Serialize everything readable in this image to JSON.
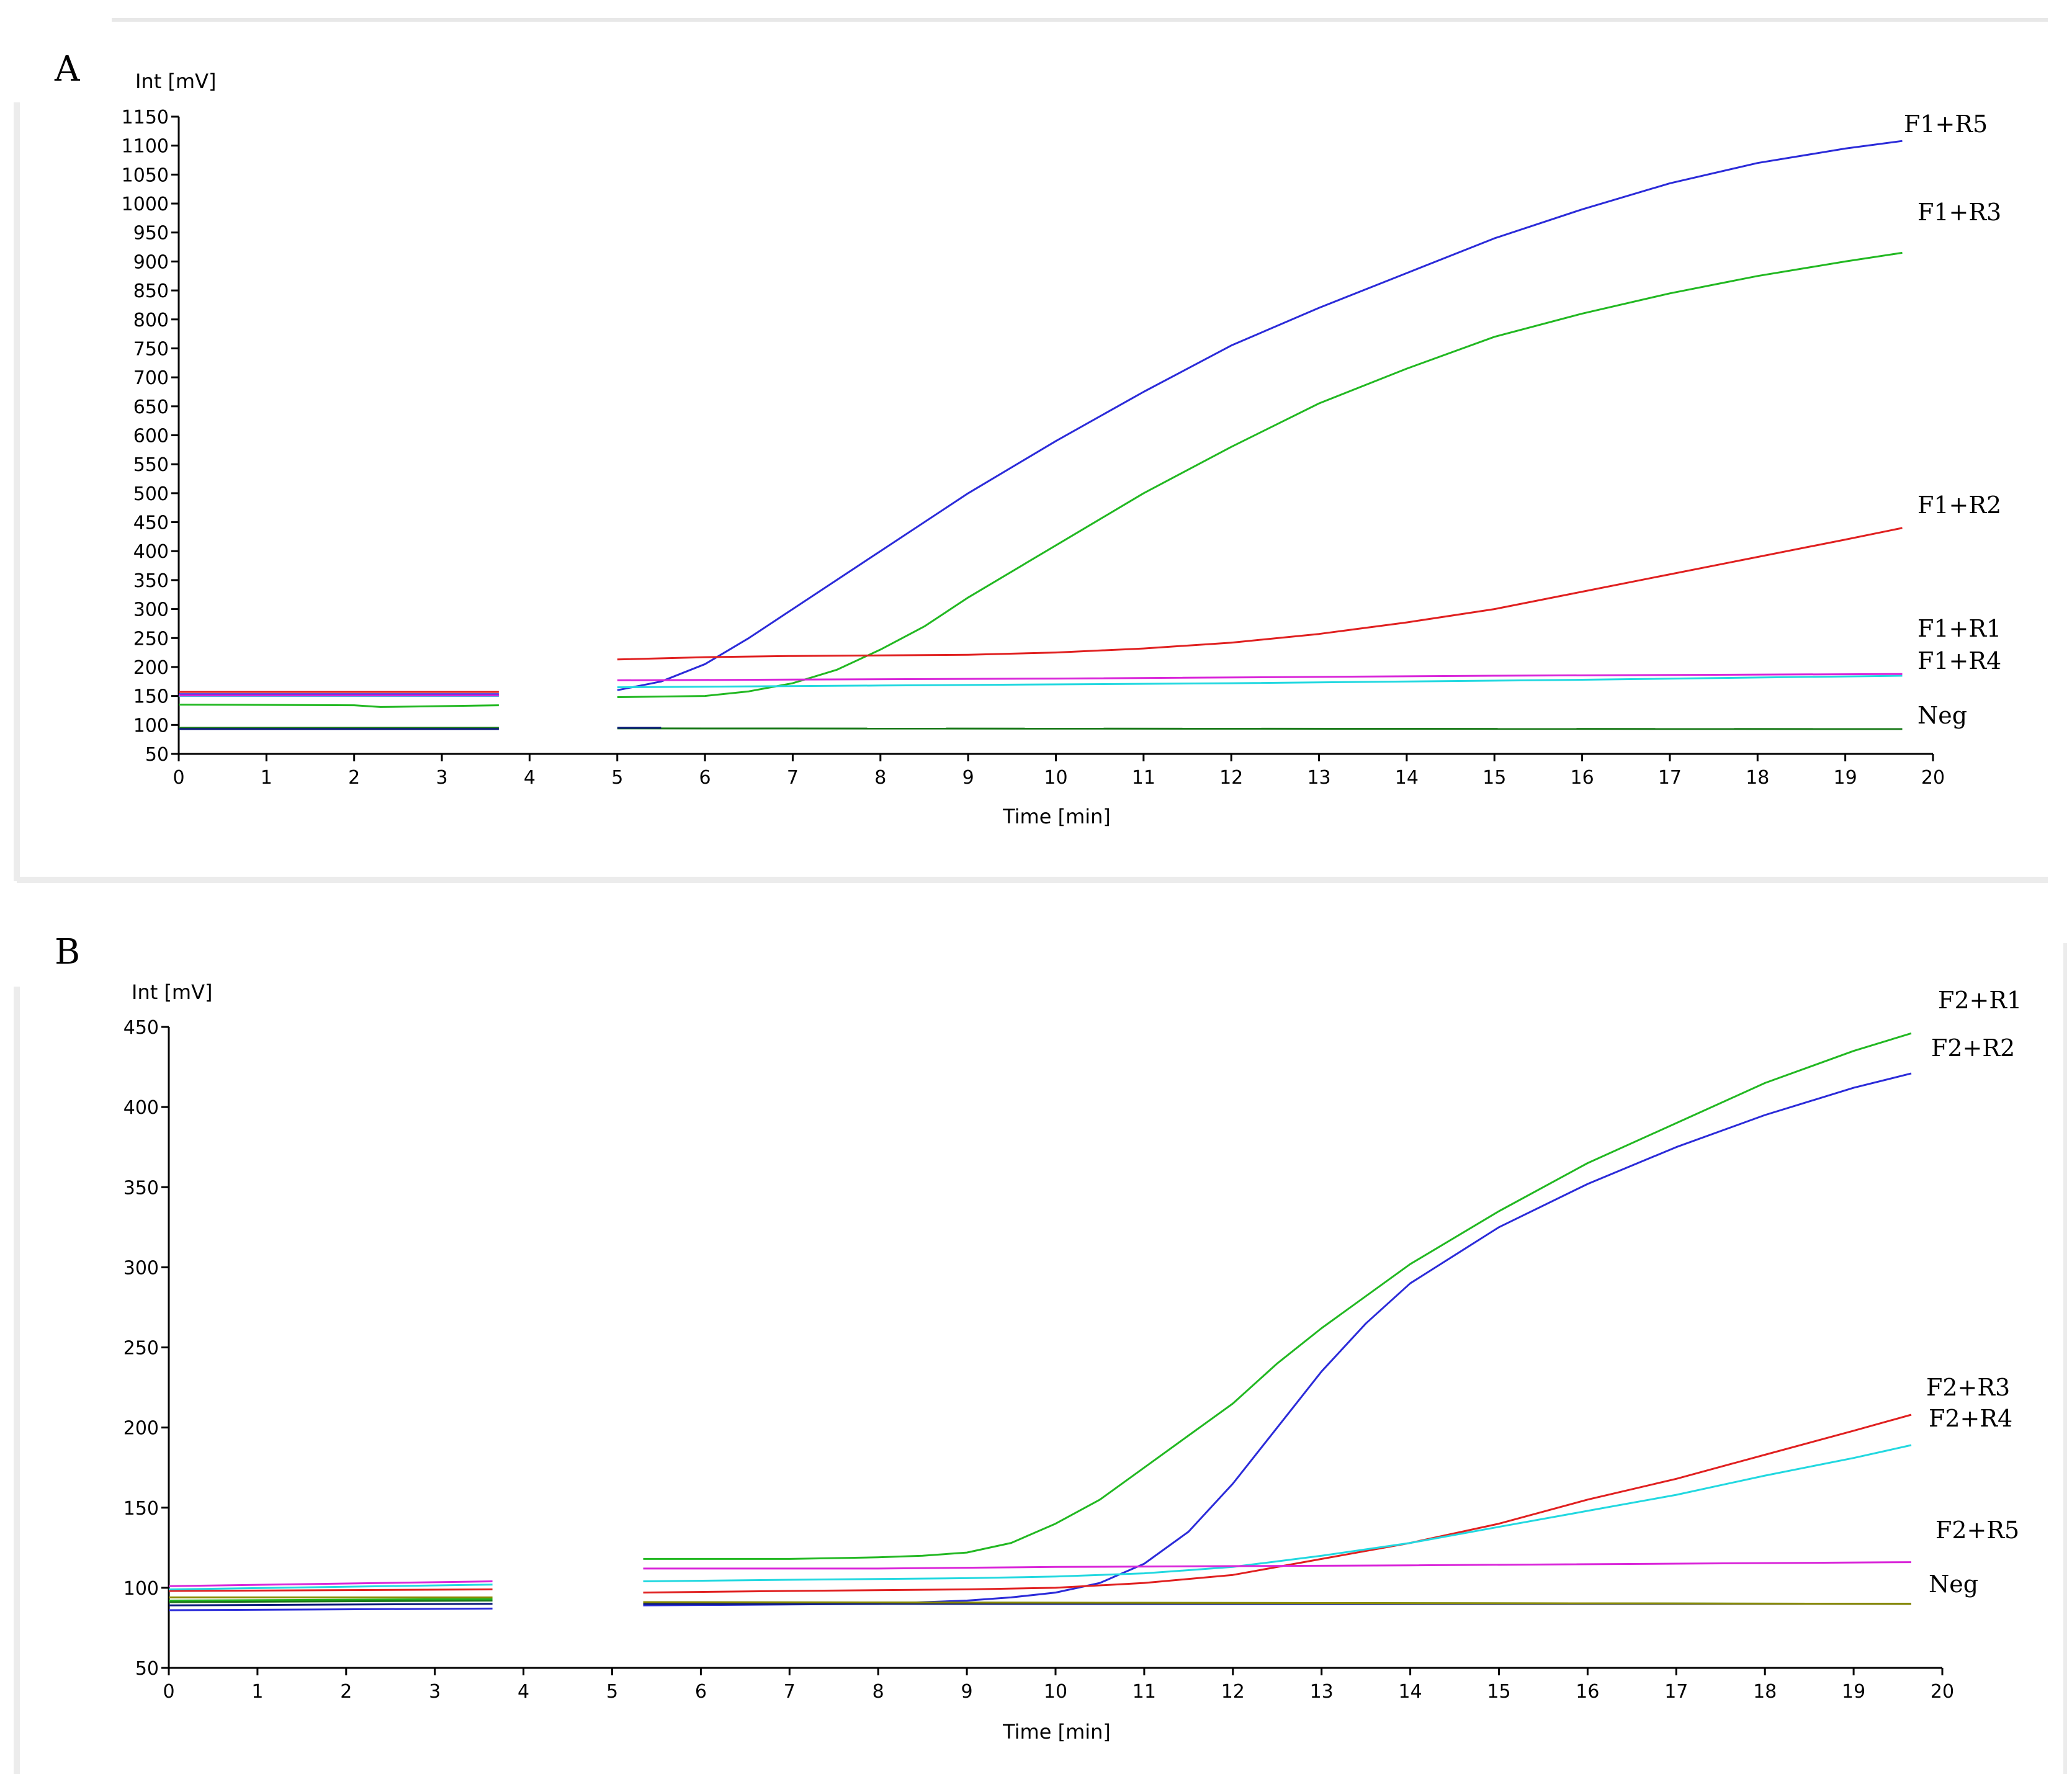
{
  "panels": [
    {
      "label": "A",
      "chart_data": {
        "type": "line",
        "title": "",
        "xlabel": "Time [min]",
        "ylabel": "Int [mV]",
        "xlim": [
          0,
          20
        ],
        "ylim": [
          50,
          1150
        ],
        "xticks": [
          0,
          1,
          2,
          3,
          4,
          5,
          6,
          7,
          8,
          9,
          10,
          11,
          12,
          13,
          14,
          15,
          16,
          17,
          18,
          19,
          20
        ],
        "yticks": [
          50,
          100,
          150,
          200,
          250,
          300,
          350,
          400,
          450,
          500,
          550,
          600,
          650,
          700,
          750,
          800,
          850,
          900,
          950,
          1000,
          1050,
          1100,
          1150
        ],
        "grid": false,
        "series": [
          {
            "name": "F1+R5",
            "color": "#2b2bd9",
            "segments": [
              [
                [
                  0,
                  153
                ],
                [
                  3.65,
                  153
                ]
              ],
              [
                [
                  5,
                  160
                ],
                [
                  5.5,
                  175
                ],
                [
                  6,
                  205
                ],
                [
                  6.5,
                  250
                ],
                [
                  7,
                  300
                ],
                [
                  8,
                  400
                ],
                [
                  9,
                  500
                ],
                [
                  10,
                  590
                ],
                [
                  11,
                  675
                ],
                [
                  12,
                  755
                ],
                [
                  13,
                  820
                ],
                [
                  14,
                  880
                ],
                [
                  15,
                  940
                ],
                [
                  16,
                  990
                ],
                [
                  17,
                  1035
                ],
                [
                  18,
                  1070
                ],
                [
                  19,
                  1095
                ],
                [
                  19.65,
                  1108
                ]
              ]
            ]
          },
          {
            "name": "F1+R3",
            "color": "#22b822",
            "segments": [
              [
                [
                  0,
                  135
                ],
                [
                  2,
                  134
                ],
                [
                  2.3,
                  131
                ],
                [
                  3.65,
                  134
                ]
              ],
              [
                [
                  5,
                  148
                ],
                [
                  6,
                  150
                ],
                [
                  6.5,
                  158
                ],
                [
                  7,
                  172
                ],
                [
                  7.5,
                  195
                ],
                [
                  8,
                  230
                ],
                [
                  8.5,
                  270
                ],
                [
                  9,
                  320
                ],
                [
                  10,
                  410
                ],
                [
                  11,
                  500
                ],
                [
                  12,
                  580
                ],
                [
                  13,
                  655
                ],
                [
                  14,
                  715
                ],
                [
                  15,
                  770
                ],
                [
                  16,
                  810
                ],
                [
                  17,
                  845
                ],
                [
                  18,
                  875
                ],
                [
                  19,
                  900
                ],
                [
                  19.65,
                  915
                ]
              ]
            ]
          },
          {
            "name": "F1+R2",
            "color": "#e02020",
            "segments": [
              [
                [
                  0,
                  157
                ],
                [
                  3.65,
                  157
                ]
              ],
              [
                [
                  5,
                  213
                ],
                [
                  6,
                  217
                ],
                [
                  7,
                  219
                ],
                [
                  8,
                  220
                ],
                [
                  9,
                  221
                ],
                [
                  10,
                  225
                ],
                [
                  11,
                  232
                ],
                [
                  12,
                  242
                ],
                [
                  13,
                  257
                ],
                [
                  14,
                  277
                ],
                [
                  15,
                  300
                ],
                [
                  16,
                  330
                ],
                [
                  17,
                  360
                ],
                [
                  18,
                  390
                ],
                [
                  19,
                  420
                ],
                [
                  19.65,
                  440
                ]
              ]
            ]
          },
          {
            "name": "F1+R1",
            "color": "#22d8e0",
            "segments": [
              [
                [
                  0,
                  150
                ],
                [
                  3.65,
                  150
                ]
              ],
              [
                [
                  5,
                  165
                ],
                [
                  8,
                  168
                ],
                [
                  12,
                  172
                ],
                [
                  16,
                  178
                ],
                [
                  19.65,
                  185
                ]
              ]
            ]
          },
          {
            "name": "F1+R4",
            "color": "#d926d9",
            "segments": [
              [
                [
                  0,
                  151
                ],
                [
                  3.65,
                  151
                ]
              ],
              [
                [
                  5,
                  177
                ],
                [
                  10,
                  180
                ],
                [
                  15,
                  185
                ],
                [
                  19.65,
                  188
                ]
              ]
            ]
          },
          {
            "name": "Neg",
            "color": "#1a7a1a",
            "segments": [
              [
                [
                  0,
                  95
                ],
                [
                  3.65,
                  95
                ]
              ],
              [
                [
                  5,
                  94
                ],
                [
                  19.65,
                  93
                ]
              ]
            ]
          },
          {
            "name": "",
            "color": "#0a1a7a",
            "segments": [
              [
                [
                  0,
                  93
                ],
                [
                  3.65,
                  93
                ]
              ],
              [
                [
                  5,
                  95
                ],
                [
                  5.5,
                  95
                ]
              ]
            ]
          }
        ]
      }
    },
    {
      "label": "B",
      "chart_data": {
        "type": "line",
        "title": "",
        "xlabel": "Time [min]",
        "ylabel": "Int [mV]",
        "xlim": [
          0,
          20
        ],
        "ylim": [
          50,
          450
        ],
        "xticks": [
          0,
          1,
          2,
          3,
          4,
          5,
          6,
          7,
          8,
          9,
          10,
          11,
          12,
          13,
          14,
          15,
          16,
          17,
          18,
          19,
          20
        ],
        "yticks": [
          50,
          100,
          150,
          200,
          250,
          300,
          350,
          400,
          450
        ],
        "grid": false,
        "series": [
          {
            "name": "F2+R1",
            "color": "#22b822",
            "segments": [
              [
                [
                  0,
                  92
                ],
                [
                  3.65,
                  93
                ]
              ],
              [
                [
                  5.35,
                  118
                ],
                [
                  6,
                  118
                ],
                [
                  7,
                  118
                ],
                [
                  8,
                  119
                ],
                [
                  8.5,
                  120
                ],
                [
                  9,
                  122
                ],
                [
                  9.5,
                  128
                ],
                [
                  10,
                  140
                ],
                [
                  10.5,
                  155
                ],
                [
                  11,
                  175
                ],
                [
                  11.5,
                  195
                ],
                [
                  12,
                  215
                ],
                [
                  12.5,
                  240
                ],
                [
                  13,
                  262
                ],
                [
                  14,
                  302
                ],
                [
                  15,
                  335
                ],
                [
                  16,
                  365
                ],
                [
                  17,
                  390
                ],
                [
                  18,
                  415
                ],
                [
                  19,
                  435
                ],
                [
                  19.65,
                  446
                ]
              ]
            ]
          },
          {
            "name": "F2+R2",
            "color": "#2b2bd9",
            "segments": [
              [
                [
                  0,
                  86
                ],
                [
                  3.65,
                  87
                ]
              ],
              [
                [
                  5.35,
                  89
                ],
                [
                  8,
                  90
                ],
                [
                  9,
                  92
                ],
                [
                  9.5,
                  94
                ],
                [
                  10,
                  97
                ],
                [
                  10.5,
                  103
                ],
                [
                  11,
                  115
                ],
                [
                  11.5,
                  135
                ],
                [
                  12,
                  165
                ],
                [
                  12.5,
                  200
                ],
                [
                  13,
                  235
                ],
                [
                  13.5,
                  265
                ],
                [
                  14,
                  290
                ],
                [
                  15,
                  325
                ],
                [
                  16,
                  352
                ],
                [
                  17,
                  375
                ],
                [
                  18,
                  395
                ],
                [
                  19,
                  412
                ],
                [
                  19.65,
                  421
                ]
              ]
            ]
          },
          {
            "name": "F2+R3",
            "color": "#e02020",
            "segments": [
              [
                [
                  0,
                  98
                ],
                [
                  3.65,
                  99
                ]
              ],
              [
                [
                  5.35,
                  97
                ],
                [
                  7,
                  98
                ],
                [
                  9,
                  99
                ],
                [
                  10,
                  100
                ],
                [
                  11,
                  103
                ],
                [
                  12,
                  108
                ],
                [
                  13,
                  118
                ],
                [
                  14,
                  128
                ],
                [
                  15,
                  140
                ],
                [
                  16,
                  155
                ],
                [
                  17,
                  168
                ],
                [
                  18,
                  183
                ],
                [
                  19,
                  198
                ],
                [
                  19.65,
                  208
                ]
              ]
            ]
          },
          {
            "name": "F2+R4",
            "color": "#22d8e0",
            "segments": [
              [
                [
                  0,
                  99
                ],
                [
                  3.65,
                  102
                ]
              ],
              [
                [
                  5.35,
                  104
                ],
                [
                  7,
                  105
                ],
                [
                  9,
                  106
                ],
                [
                  10,
                  107
                ],
                [
                  11,
                  109
                ],
                [
                  12,
                  113
                ],
                [
                  13,
                  120
                ],
                [
                  14,
                  128
                ],
                [
                  15,
                  138
                ],
                [
                  16,
                  148
                ],
                [
                  17,
                  158
                ],
                [
                  18,
                  170
                ],
                [
                  19,
                  181
                ],
                [
                  19.65,
                  189
                ]
              ]
            ]
          },
          {
            "name": "F2+R5",
            "color": "#d926d9",
            "segments": [
              [
                [
                  0,
                  101
                ],
                [
                  3.65,
                  104
                ]
              ],
              [
                [
                  5.35,
                  112
                ],
                [
                  8,
                  112
                ],
                [
                  10,
                  113
                ],
                [
                  14,
                  114
                ],
                [
                  19.65,
                  116
                ]
              ]
            ]
          },
          {
            "name": "Neg",
            "color": "#1a7a1a",
            "segments": [
              [
                [
                  0,
                  91
                ],
                [
                  3.65,
                  92
                ]
              ],
              [
                [
                  5.35,
                  91
                ],
                [
                  19.65,
                  90
                ]
              ]
            ]
          },
          {
            "name": "",
            "color": "#0a1a7a",
            "segments": [
              [
                [
                  0,
                  89
                ],
                [
                  3.65,
                  90
                ]
              ],
              [
                [
                  5.35,
                  90
                ],
                [
                  19.65,
                  90
                ]
              ]
            ]
          },
          {
            "name": "",
            "color": "#8a8a00",
            "segments": [
              [
                [
                  0,
                  94
                ],
                [
                  3.65,
                  94
                ]
              ],
              [
                [
                  5.35,
                  91
                ],
                [
                  19.65,
                  90
                ]
              ]
            ]
          }
        ]
      }
    }
  ]
}
